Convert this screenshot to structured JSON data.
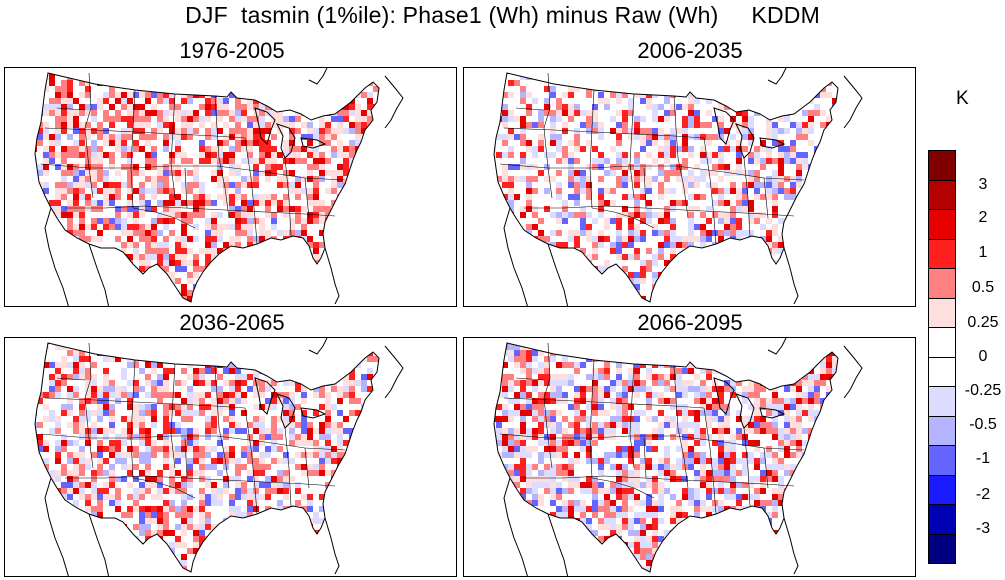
{
  "title": "DJF  tasmin (1%ile): Phase1 (Wh) minus Raw (Wh)     KDDM",
  "panels": [
    {
      "title": "1976-2005"
    },
    {
      "title": "2006-2035"
    },
    {
      "title": "2036-2065"
    },
    {
      "title": "2066-2095"
    }
  ],
  "legend": {
    "units": "K",
    "colors": [
      "#800000",
      "#b50000",
      "#e60000",
      "#ff2020",
      "#ff8080",
      "#ffdede",
      "#ffffff",
      "#ffffff",
      "#dcdcff",
      "#b4b4ff",
      "#6464ff",
      "#1a1aff",
      "#0000b4",
      "#000080"
    ],
    "labels": [
      "3",
      "2",
      "1",
      "0.5",
      "0.25",
      "0",
      "-0.25",
      "-0.5",
      "-1",
      "-2",
      "-3"
    ]
  }
}
